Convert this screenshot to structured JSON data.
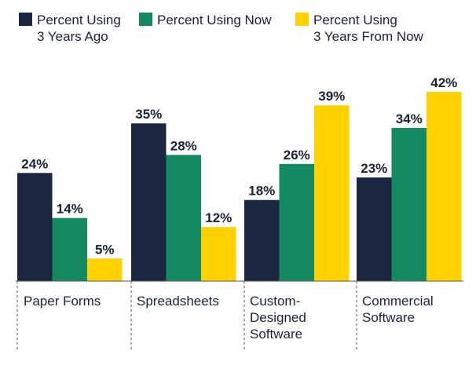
{
  "colors": {
    "series_0": "#1b2641",
    "series_1": "#148a63",
    "series_2": "#ffd100",
    "text": "#1b2235",
    "axis": "#555555"
  },
  "chart_data": {
    "type": "bar",
    "categories": [
      [
        "Paper Forms"
      ],
      [
        "Spreadsheets"
      ],
      [
        "Custom-",
        "Designed",
        "Software"
      ],
      [
        "Commercial",
        "Software"
      ]
    ],
    "series": [
      {
        "name_lines": [
          "Percent Using",
          "3 Years Ago"
        ],
        "values": [
          24,
          35,
          18,
          23
        ]
      },
      {
        "name_lines": [
          "Percent Using Now"
        ],
        "values": [
          14,
          28,
          26,
          34
        ]
      },
      {
        "name_lines": [
          "Percent Using",
          "3 Years From Now"
        ],
        "values": [
          5,
          12,
          39,
          42
        ]
      }
    ],
    "value_suffix": "%",
    "ylim": [
      0,
      42
    ],
    "legend_position": "top",
    "grid": false
  }
}
